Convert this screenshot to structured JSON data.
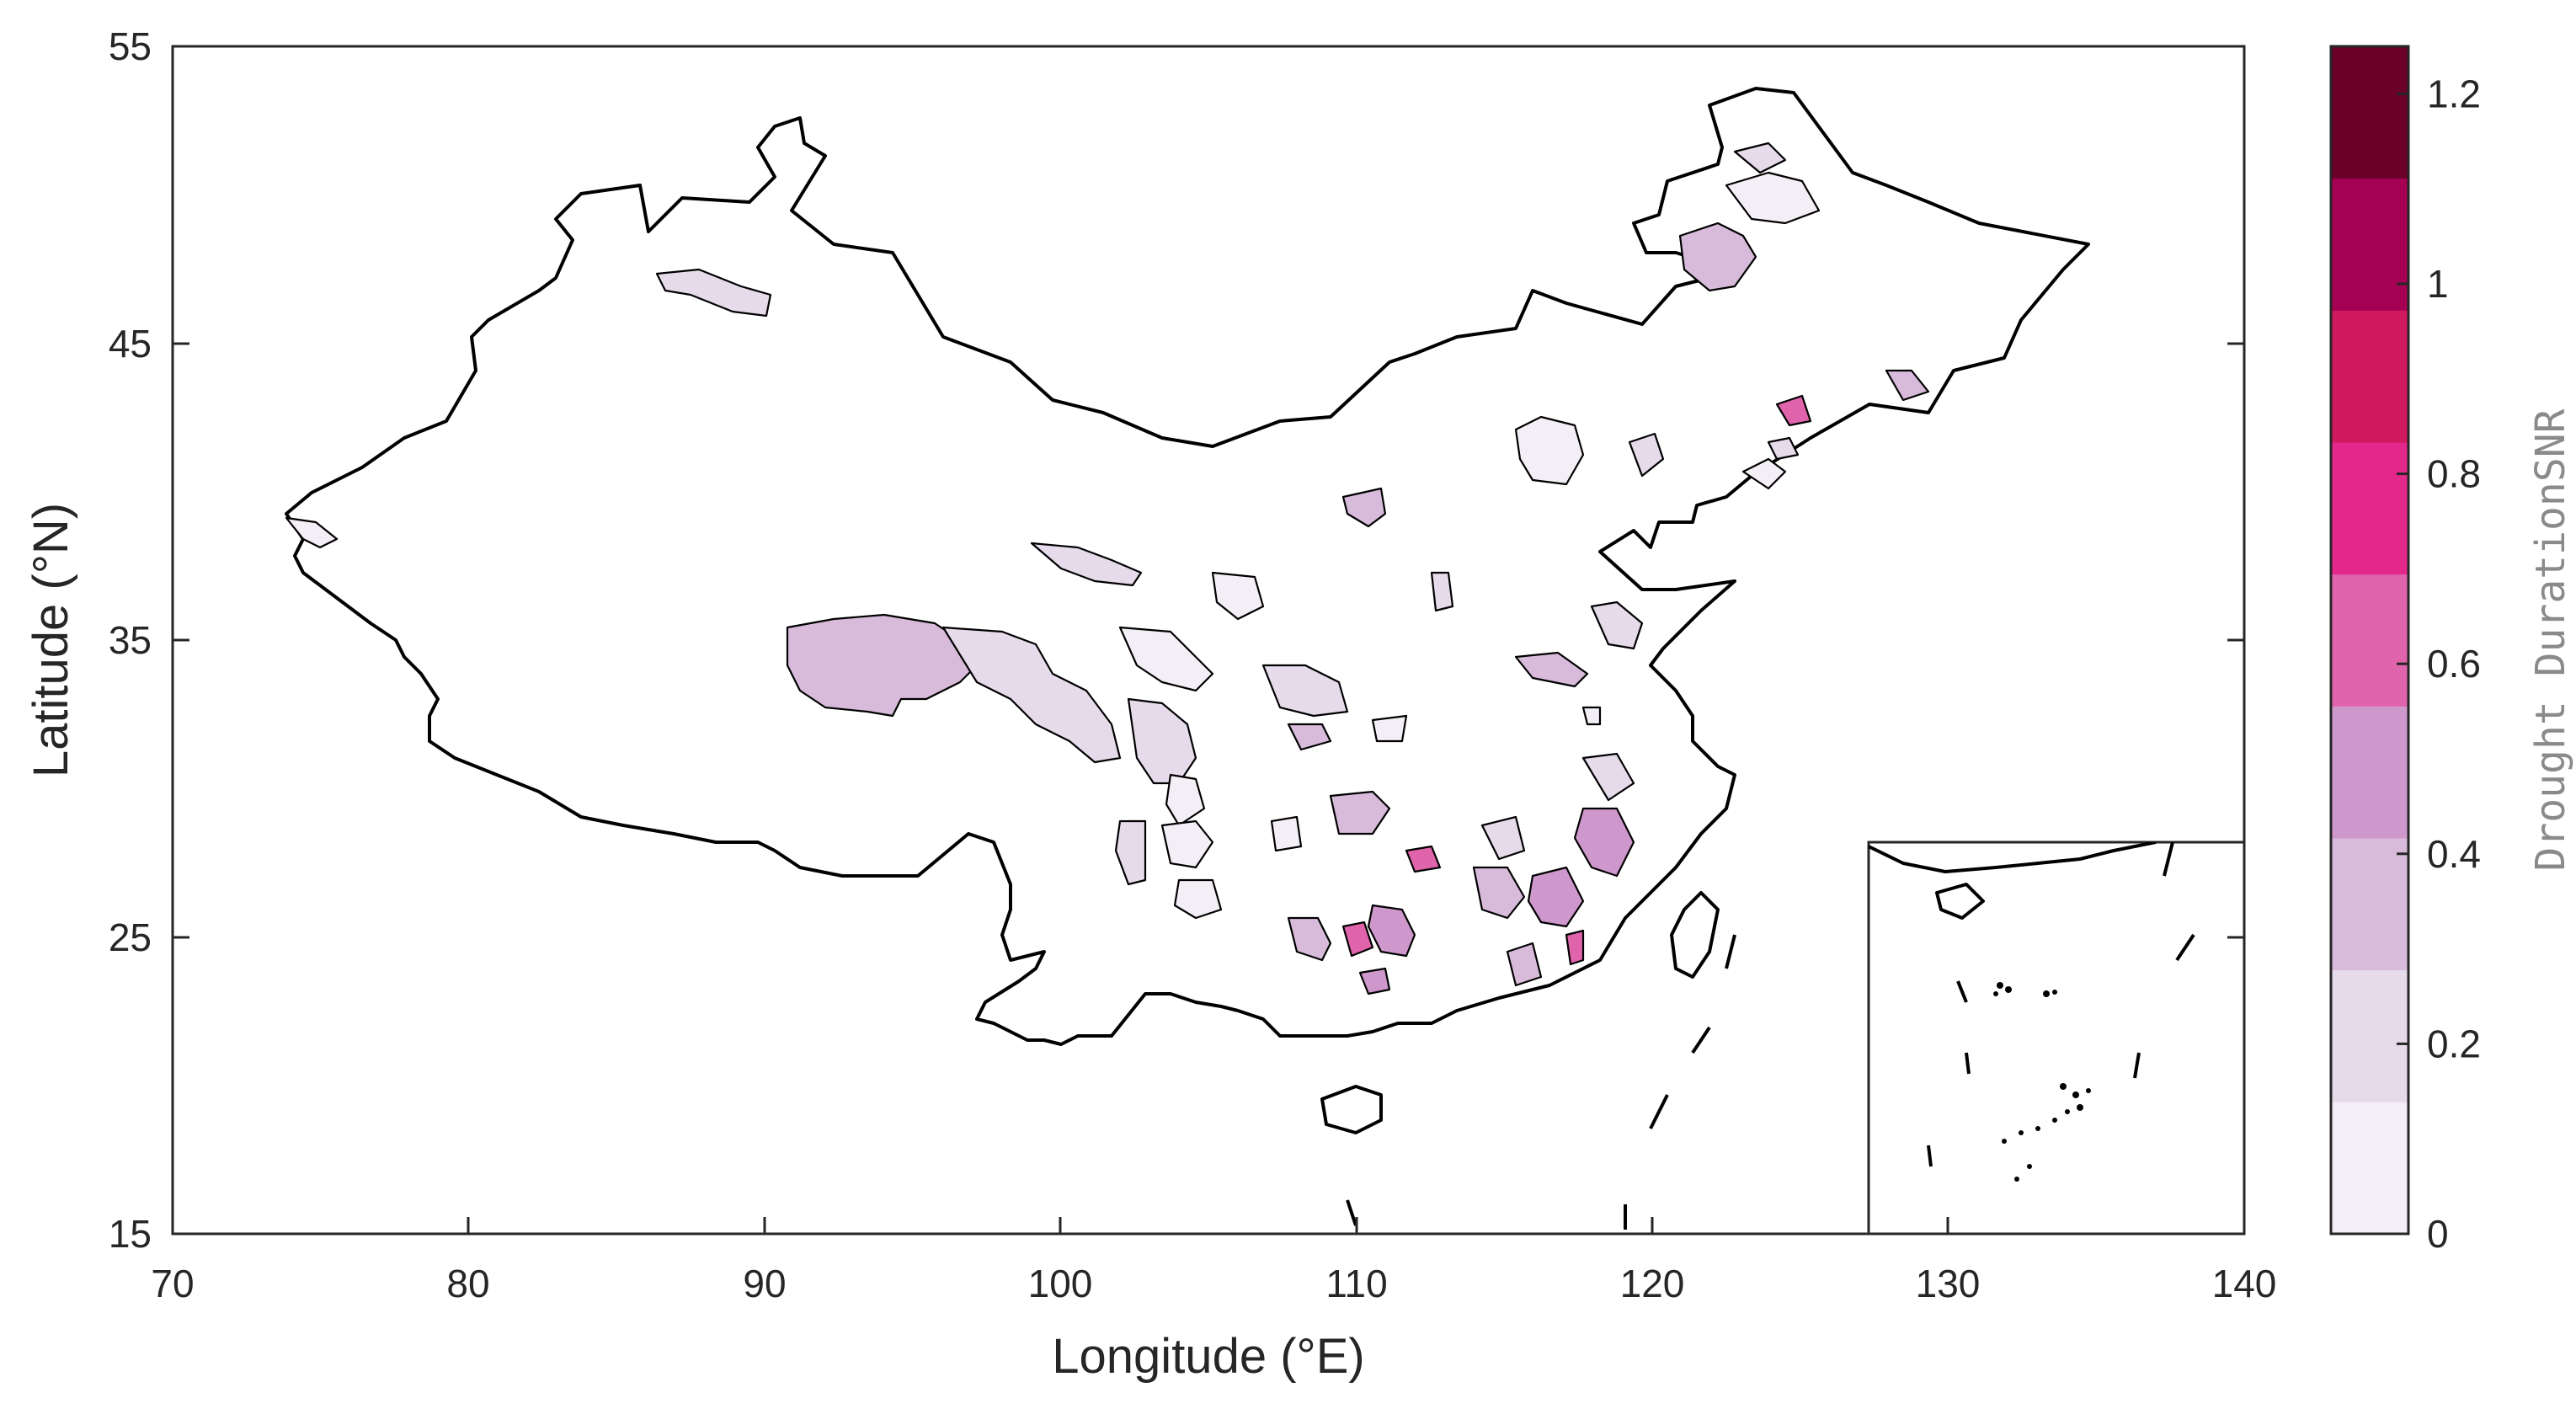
{
  "map": {
    "xlabel": "Longitude (°E)",
    "ylabel": "Latitude (°N)",
    "x_ticks": [
      "70",
      "80",
      "90",
      "100",
      "110",
      "120",
      "130",
      "140"
    ],
    "y_ticks": [
      "15",
      "25",
      "35",
      "45",
      "55"
    ],
    "lon_range": [
      70,
      140
    ],
    "lat_range": [
      15,
      55
    ]
  },
  "colorbar": {
    "label": "Drought DurationSNR",
    "tick_labels": [
      "0",
      "0.2",
      "0.4",
      "0.6",
      "0.8",
      "1",
      "1.2"
    ],
    "range": [
      0,
      1.25
    ],
    "colors": [
      "#f4eff6",
      "#e6dbeb",
      "#d8bbdb",
      "#cf98cc",
      "#e064ab",
      "#e4288b",
      "#d01a5e",
      "#a50054",
      "#6a0027"
    ]
  }
}
